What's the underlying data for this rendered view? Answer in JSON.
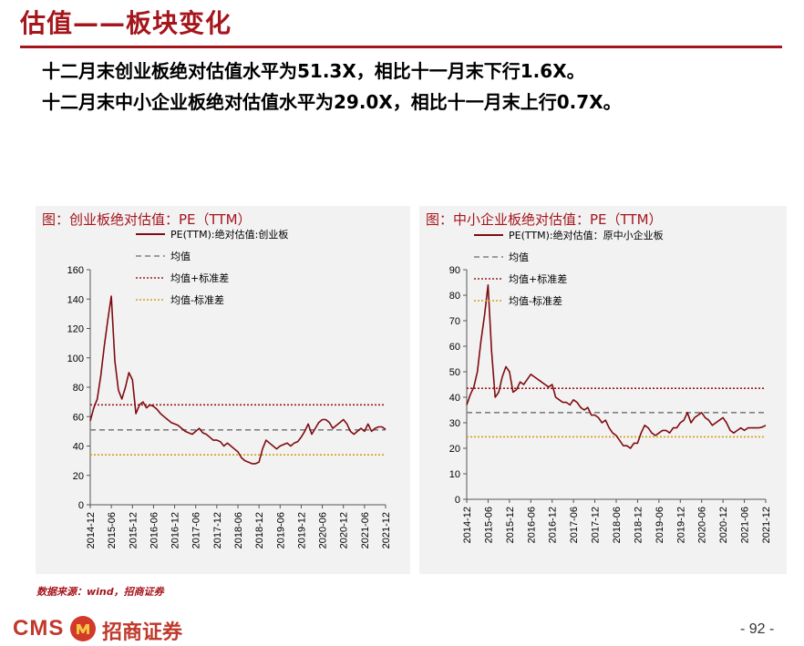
{
  "page": {
    "title": "估值——板块变化",
    "summary_line1": "十二月末创业板绝对估值水平为51.3X，相比十一月末下行1.6X。",
    "summary_line2": "十二月末中小企业板绝对估值水平为29.0X，相比十一月末上行0.7X。",
    "source": "数据来源：wind，招商证券",
    "logo_text": "CMS",
    "logo_cn": "招商证券",
    "page_number": "- 92 -"
  },
  "colors": {
    "brand_red": "#a5151c",
    "pe_line": "#7f0b10",
    "mean_line": "#7f7f7f",
    "upper_line": "#9e1b1b",
    "lower_line": "#d4a017",
    "panel_bg": "#f2f2f2"
  },
  "chart_data": [
    {
      "type": "line",
      "title": "图：创业板绝对估值：PE（TTM）",
      "ylim": [
        0,
        160
      ],
      "yticks": [
        0,
        20,
        40,
        60,
        80,
        100,
        120,
        140,
        160
      ],
      "x_range": [
        "2014-12",
        "2021-12"
      ],
      "x_ticks": [
        "2014-12",
        "2015-06",
        "2015-12",
        "2016-06",
        "2016-12",
        "2017-06",
        "2017-12",
        "2018-06",
        "2018-12",
        "2019-06",
        "2019-12",
        "2020-06",
        "2020-12",
        "2021-06",
        "2021-12"
      ],
      "legend_placement": "top-left",
      "series": [
        {
          "name": "PE(TTM):绝对估值:创业板",
          "style": "solid",
          "x": [
            "2014-12",
            "2015-01",
            "2015-02",
            "2015-03",
            "2015-04",
            "2015-05",
            "2015-06",
            "2015-07",
            "2015-08",
            "2015-09",
            "2015-10",
            "2015-11",
            "2015-12",
            "2016-01",
            "2016-02",
            "2016-03",
            "2016-04",
            "2016-05",
            "2016-06",
            "2016-07",
            "2016-08",
            "2016-09",
            "2016-10",
            "2016-11",
            "2016-12",
            "2017-01",
            "2017-02",
            "2017-03",
            "2017-04",
            "2017-05",
            "2017-06",
            "2017-07",
            "2017-08",
            "2017-09",
            "2017-10",
            "2017-11",
            "2017-12",
            "2018-01",
            "2018-02",
            "2018-03",
            "2018-04",
            "2018-05",
            "2018-06",
            "2018-07",
            "2018-08",
            "2018-09",
            "2018-10",
            "2018-11",
            "2018-12",
            "2019-01",
            "2019-02",
            "2019-03",
            "2019-04",
            "2019-05",
            "2019-06",
            "2019-07",
            "2019-08",
            "2019-09",
            "2019-10",
            "2019-11",
            "2019-12",
            "2020-01",
            "2020-02",
            "2020-03",
            "2020-04",
            "2020-05",
            "2020-06",
            "2020-07",
            "2020-08",
            "2020-09",
            "2020-10",
            "2020-11",
            "2020-12",
            "2021-01",
            "2021-02",
            "2021-03",
            "2021-04",
            "2021-05",
            "2021-06",
            "2021-07",
            "2021-08",
            "2021-09",
            "2021-10",
            "2021-11",
            "2021-12"
          ],
          "values": [
            57,
            66,
            72,
            88,
            108,
            126,
            142,
            98,
            78,
            72,
            80,
            90,
            85,
            62,
            68,
            70,
            66,
            68,
            67,
            65,
            62,
            60,
            58,
            56,
            55,
            54,
            52,
            50,
            49,
            48,
            50,
            52,
            49,
            48,
            46,
            44,
            44,
            43,
            40,
            42,
            40,
            38,
            36,
            32,
            30,
            29,
            28,
            28,
            29,
            38,
            44,
            42,
            40,
            38,
            40,
            41,
            42,
            40,
            42,
            43,
            46,
            50,
            55,
            48,
            52,
            56,
            58,
            58,
            56,
            52,
            54,
            56,
            58,
            55,
            50,
            48,
            50,
            52,
            50,
            55,
            50,
            52,
            53,
            53,
            51.3
          ]
        },
        {
          "name": "均值",
          "style": "dashed",
          "constant": 51
        },
        {
          "name": "均值+标准差",
          "style": "dotted",
          "constant": 68
        },
        {
          "name": "均值-标准差",
          "style": "dotted",
          "constant": 34
        }
      ]
    },
    {
      "type": "line",
      "title": "图：中小企业板绝对估值：PE（TTM）",
      "ylim": [
        0,
        90
      ],
      "yticks": [
        0,
        10,
        20,
        30,
        40,
        50,
        60,
        70,
        80,
        90
      ],
      "x_range": [
        "2014-12",
        "2021-12"
      ],
      "x_ticks": [
        "2014-12",
        "2015-06",
        "2015-12",
        "2016-06",
        "2016-12",
        "2017-06",
        "2017-12",
        "2018-06",
        "2018-12",
        "2019-06",
        "2019-12",
        "2020-06",
        "2020-12",
        "2021-06",
        "2021-12"
      ],
      "legend_placement": "top-left",
      "series": [
        {
          "name": "PE(TTM):绝对估值：原中小企业板",
          "style": "solid",
          "x": [
            "2014-12",
            "2015-01",
            "2015-02",
            "2015-03",
            "2015-04",
            "2015-05",
            "2015-06",
            "2015-07",
            "2015-08",
            "2015-09",
            "2015-10",
            "2015-11",
            "2015-12",
            "2016-01",
            "2016-02",
            "2016-03",
            "2016-04",
            "2016-05",
            "2016-06",
            "2016-07",
            "2016-08",
            "2016-09",
            "2016-10",
            "2016-11",
            "2016-12",
            "2017-01",
            "2017-02",
            "2017-03",
            "2017-04",
            "2017-05",
            "2017-06",
            "2017-07",
            "2017-08",
            "2017-09",
            "2017-10",
            "2017-11",
            "2017-12",
            "2018-01",
            "2018-02",
            "2018-03",
            "2018-04",
            "2018-05",
            "2018-06",
            "2018-07",
            "2018-08",
            "2018-09",
            "2018-10",
            "2018-11",
            "2018-12",
            "2019-01",
            "2019-02",
            "2019-03",
            "2019-04",
            "2019-05",
            "2019-06",
            "2019-07",
            "2019-08",
            "2019-09",
            "2019-10",
            "2019-11",
            "2019-12",
            "2020-01",
            "2020-02",
            "2020-03",
            "2020-04",
            "2020-05",
            "2020-06",
            "2020-07",
            "2020-08",
            "2020-09",
            "2020-10",
            "2020-11",
            "2020-12",
            "2021-01",
            "2021-02",
            "2021-03",
            "2021-04",
            "2021-05",
            "2021-06",
            "2021-07",
            "2021-08",
            "2021-09",
            "2021-10",
            "2021-11",
            "2021-12"
          ],
          "values": [
            37,
            41,
            44,
            50,
            62,
            72,
            84,
            58,
            40,
            42,
            48,
            52,
            50,
            42,
            43,
            46,
            45,
            47,
            49,
            48,
            47,
            46,
            45,
            44,
            45,
            40,
            39,
            38,
            38,
            37,
            39,
            38,
            36,
            35,
            36,
            33,
            33,
            32,
            30,
            31,
            28,
            26,
            25,
            23,
            21,
            21,
            20,
            22,
            22,
            26,
            29,
            28,
            26,
            25,
            26,
            27,
            27,
            26,
            28,
            28,
            30,
            31,
            34,
            30,
            32,
            33,
            34,
            32,
            31,
            29,
            30,
            31,
            32,
            30,
            27,
            26,
            27,
            28,
            27,
            28,
            28,
            28,
            28,
            28.3,
            29
          ]
        },
        {
          "name": "均值",
          "style": "dashed",
          "constant": 34
        },
        {
          "name": "均值+标准差",
          "style": "dotted",
          "constant": 43.5
        },
        {
          "name": "均值-标准差",
          "style": "dotted",
          "constant": 24.5
        }
      ]
    }
  ]
}
